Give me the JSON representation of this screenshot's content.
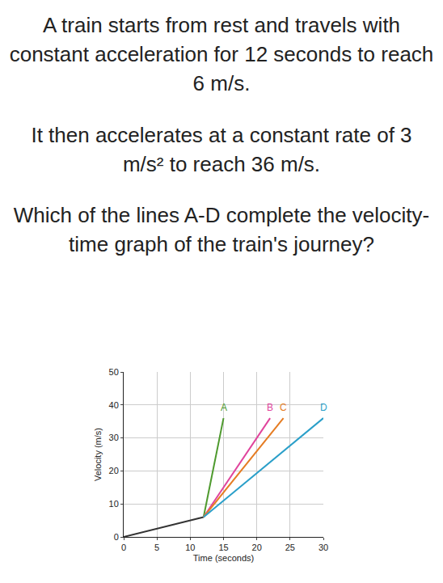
{
  "question": [
    "A train starts from rest and travels with constant acceleration for 12 seconds to reach 6 m/s.",
    "It then accelerates at a constant rate of 3 m/s² to reach 36 m/s.",
    "Which of the lines A-D complete the velocity-time graph of the train's journey?"
  ],
  "chart_data": {
    "type": "line",
    "x_label": "Time (seconds)",
    "y_label": "Velocity (m/s)",
    "xlim": [
      0,
      30
    ],
    "xticks": [
      0,
      5,
      10,
      15,
      20,
      25,
      30
    ],
    "ylim": [
      0,
      50
    ],
    "yticks": [
      0,
      10,
      20,
      30,
      40,
      50
    ],
    "grid": true,
    "series": [
      {
        "color": "#333333",
        "x": [
          0,
          12
        ],
        "values": [
          0,
          6
        ]
      },
      {
        "name": "A",
        "color": "#4e9a2e",
        "x": [
          12,
          15
        ],
        "values": [
          6,
          36
        ]
      },
      {
        "name": "B",
        "color": "#e0449c",
        "x": [
          12,
          22
        ],
        "values": [
          6,
          36
        ]
      },
      {
        "name": "C",
        "color": "#e57c22",
        "x": [
          12,
          24
        ],
        "values": [
          6,
          36
        ]
      },
      {
        "name": "D",
        "color": "#2a9fc9",
        "x": [
          12,
          30
        ],
        "values": [
          6,
          36
        ]
      }
    ]
  }
}
